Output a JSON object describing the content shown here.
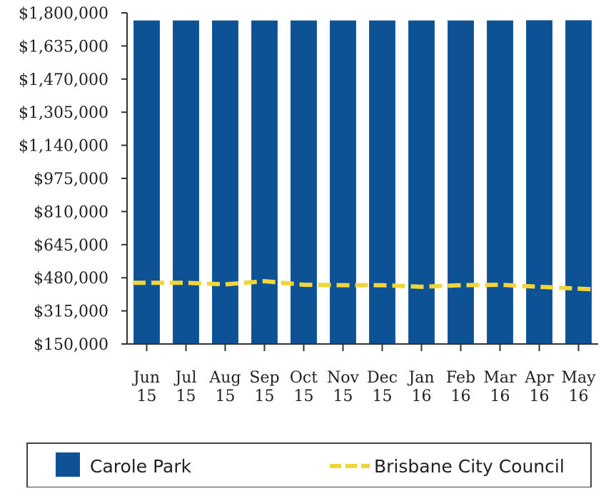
{
  "chart_data": {
    "type": "bar",
    "categories": [
      [
        "Jun",
        "15"
      ],
      [
        "Jul",
        "15"
      ],
      [
        "Aug",
        "15"
      ],
      [
        "Sep",
        "15"
      ],
      [
        "Oct",
        "15"
      ],
      [
        "Nov",
        "15"
      ],
      [
        "Dec",
        "15"
      ],
      [
        "Jan",
        "16"
      ],
      [
        "Feb",
        "16"
      ],
      [
        "Mar",
        "16"
      ],
      [
        "Apr",
        "16"
      ],
      [
        "May",
        "16"
      ]
    ],
    "series": [
      {
        "name": "Carole Park",
        "type": "bar",
        "color": "#0e5296",
        "values": [
          1762000,
          1762000,
          1762000,
          1762000,
          1762000,
          1762000,
          1762000,
          1762000,
          1762000,
          1762000,
          1763000,
          1763000
        ]
      },
      {
        "name": "Brisbane City Council",
        "type": "line",
        "style": "dashed",
        "color": "#f2d53a",
        "values": [
          455000,
          455000,
          447000,
          463000,
          445000,
          443000,
          443000,
          435000,
          443000,
          445000,
          435000,
          422000
        ]
      }
    ],
    "y_ticks": [
      "$1,800,000",
      "$1,635,000",
      "$1,470,000",
      "$1,305,000",
      "$1,140,000",
      "$975,000",
      "$810,000",
      "$645,000",
      "$480,000",
      "$315,000",
      "$150,000"
    ],
    "ylim": [
      150000,
      1800000
    ],
    "title": "",
    "xlabel": "",
    "ylabel": "",
    "grid": false,
    "legend_position": "bottom"
  }
}
